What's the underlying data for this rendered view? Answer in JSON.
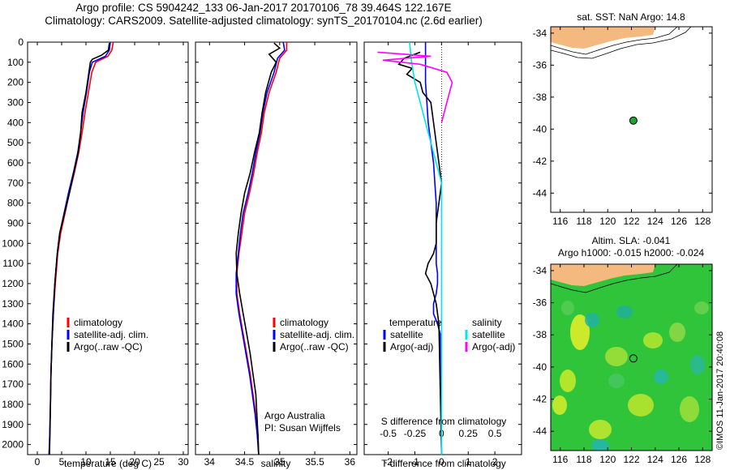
{
  "header": {
    "line1": "Argo profile: CS 5904242_133 06-Jan-2017 20170106_78 39.464S 122.167E",
    "line2": "Climatology: CARS2009. Satellite-adjusted climatology: synTS_20170104.nc (2.6d earlier)"
  },
  "colors": {
    "climatology": "#ff0000",
    "satellite": "#0000ff",
    "argo": "#000000",
    "sal_satellite": "#00e5ee",
    "sal_argo": "#ff00ff",
    "land": "#f4b97f",
    "ocean_base": "#2fc43a",
    "marker": "#1aa832"
  },
  "chart_data": [
    {
      "type": "line",
      "id": "temperature_profile",
      "xlabel": "temperature (deg C)",
      "ylabel": "",
      "xlim": [
        -2,
        31
      ],
      "ylim": [
        2050,
        0
      ],
      "xticks": [
        0,
        5,
        10,
        15,
        20,
        25,
        30
      ],
      "yticks": [
        0,
        100,
        200,
        300,
        400,
        500,
        600,
        700,
        800,
        900,
        1000,
        1100,
        1200,
        1300,
        1400,
        1500,
        1600,
        1700,
        1800,
        1900,
        2000
      ],
      "legend": [
        "climatology",
        "satellite-adj. clim.",
        "Argo(..raw -QC)"
      ],
      "series": [
        {
          "name": "climatology",
          "color": "#ff0000",
          "x": [
            15.6,
            15.3,
            14.5,
            12.0,
            11.2,
            10.5,
            9.8,
            9.2,
            8.5,
            7.6,
            6.6,
            5.7,
            4.8,
            4.2,
            3.7,
            3.3,
            3.0,
            2.8,
            2.7,
            2.6,
            2.5,
            2.4
          ],
          "depth": [
            0,
            40,
            70,
            100,
            150,
            250,
            350,
            450,
            550,
            650,
            750,
            850,
            950,
            1050,
            1200,
            1350,
            1500,
            1650,
            1800,
            1900,
            2000,
            2050
          ]
        },
        {
          "name": "satellite-adj. clim.",
          "color": "#0000ff",
          "x": [
            15.0,
            14.8,
            14.0,
            11.3,
            10.7,
            10.1,
            9.4,
            8.9,
            8.3,
            7.4,
            6.4,
            5.5,
            4.6,
            4.1,
            3.6,
            3.3,
            3.0,
            2.8,
            2.7,
            2.6,
            2.5,
            2.4
          ],
          "depth": [
            0,
            40,
            70,
            100,
            150,
            250,
            350,
            450,
            550,
            650,
            750,
            850,
            950,
            1050,
            1200,
            1350,
            1500,
            1650,
            1800,
            1900,
            2000,
            2050
          ]
        },
        {
          "name": "Argo(..raw -QC)",
          "color": "#000000",
          "x": [
            14.8,
            14.6,
            13.2,
            11.3,
            10.9,
            10.6,
            10.0,
            9.2,
            8.9,
            8.4,
            7.5,
            6.6,
            5.6,
            4.6,
            4.1,
            3.6,
            3.2,
            3.0,
            2.8,
            2.7,
            2.6,
            2.5
          ],
          "depth": [
            5,
            40,
            65,
            85,
            100,
            150,
            250,
            350,
            450,
            550,
            650,
            750,
            850,
            950,
            1050,
            1200,
            1350,
            1500,
            1650,
            1800,
            1950,
            2050
          ]
        }
      ]
    },
    {
      "type": "line",
      "id": "salinity_profile",
      "xlabel": "salinity",
      "xlim": [
        33.8,
        36.1
      ],
      "ylim": [
        2050,
        0
      ],
      "xticks": [
        34,
        34.5,
        35,
        35.5,
        36
      ],
      "legend": [
        "climatology",
        "satellite-adj. clim.",
        "Argo(..raw -QC)"
      ],
      "annotation": [
        "Argo Australia",
        "PI: Susan Wijffels"
      ],
      "series": [
        {
          "name": "climatology",
          "color": "#ff0000",
          "x": [
            35.1,
            35.1,
            35.0,
            34.95,
            34.85,
            34.78,
            34.74,
            34.68,
            34.63,
            34.57,
            34.5,
            34.46,
            34.42,
            34.39,
            34.39,
            34.43,
            34.48,
            34.53,
            34.58,
            34.62,
            34.66,
            34.69,
            34.7
          ],
          "depth": [
            0,
            40,
            80,
            150,
            250,
            350,
            450,
            550,
            650,
            750,
            850,
            950,
            1050,
            1150,
            1250,
            1350,
            1450,
            1550,
            1650,
            1750,
            1850,
            1950,
            2050
          ]
        },
        {
          "name": "satellite-adj. clim.",
          "color": "#0000ff",
          "x": [
            35.05,
            35.07,
            34.97,
            34.92,
            34.82,
            34.76,
            34.72,
            34.66,
            34.61,
            34.55,
            34.48,
            34.44,
            34.41,
            34.38,
            34.38,
            34.42,
            34.47,
            34.52,
            34.57,
            34.61,
            34.65,
            34.68,
            34.7
          ],
          "depth": [
            0,
            40,
            80,
            150,
            250,
            350,
            450,
            550,
            650,
            750,
            850,
            950,
            1050,
            1150,
            1250,
            1350,
            1450,
            1550,
            1650,
            1750,
            1850,
            1950,
            2050
          ]
        },
        {
          "name": "Argo(..raw -QC)",
          "color": "#000000",
          "x": [
            34.92,
            35.0,
            34.85,
            34.95,
            34.88,
            34.8,
            34.75,
            34.71,
            34.64,
            34.58,
            34.5,
            34.45,
            34.41,
            34.38,
            34.39,
            34.43,
            34.48,
            34.53,
            34.58,
            34.62,
            34.66,
            34.69,
            34.7
          ],
          "depth": [
            5,
            30,
            60,
            100,
            150,
            250,
            350,
            450,
            550,
            650,
            750,
            850,
            950,
            1050,
            1150,
            1250,
            1350,
            1450,
            1550,
            1650,
            1750,
            1950,
            2050
          ]
        }
      ]
    },
    {
      "type": "line",
      "id": "difference_profile",
      "xlabel": "T difference from climatology",
      "xlabel_top": "S difference from climatology",
      "xlim_T": [
        -2.9,
        3.0
      ],
      "xticks_T": [
        -2,
        -1,
        0,
        1,
        2
      ],
      "xticks_S": [
        -0.5,
        -0.25,
        0,
        0.25,
        0.5
      ],
      "xtick_labels_S": [
        "-0.5",
        "-0.25",
        "0",
        "0.25",
        "0.5"
      ],
      "ylim": [
        2050,
        0
      ],
      "legend_temperature": {
        "title": "temperature",
        "items": [
          "satellite",
          "Argo(-adj)"
        ]
      },
      "legend_salinity": {
        "title": "salinity",
        "items": [
          "satellite",
          "Argo(-adj)"
        ]
      },
      "series": [
        {
          "name": "temperature satellite",
          "color": "#0000ff",
          "x": [
            -0.6,
            -0.6,
            -0.6,
            -0.55,
            -0.5,
            -0.4,
            -0.3,
            -0.25,
            -0.2,
            -0.2,
            -0.2,
            -0.2,
            -0.15,
            -0.15,
            -0.2,
            -0.3,
            -0.3,
            -0.15,
            -0.05,
            0
          ],
          "depth": [
            0,
            100,
            200,
            300,
            400,
            500,
            600,
            700,
            800,
            900,
            1000,
            1100,
            1150,
            1200,
            1250,
            1300,
            1350,
            1400,
            1450,
            2050
          ]
        },
        {
          "name": "temperature Argo(-adj)",
          "color": "#000000",
          "x": [
            -0.8,
            -1.4,
            -1.6,
            -1.1,
            -1.3,
            -0.8,
            -0.7,
            -0.4,
            -0.3,
            -0.2,
            -0.1,
            0.0,
            -0.1,
            -0.2,
            -0.2,
            -0.3,
            -0.5,
            -0.6,
            -0.4,
            -0.2,
            -0.1,
            0.0
          ],
          "depth": [
            50,
            80,
            110,
            130,
            160,
            200,
            250,
            300,
            400,
            500,
            600,
            700,
            800,
            900,
            1000,
            1050,
            1100,
            1150,
            1200,
            1300,
            1400,
            2050
          ]
        },
        {
          "name": "salinity satellite",
          "color": "#00e5ee",
          "x": [
            -0.3,
            -0.28,
            -0.25,
            -0.2,
            -0.15,
            -0.1,
            -0.05,
            0.0,
            0.0
          ],
          "depth": [
            0,
            100,
            200,
            300,
            400,
            500,
            600,
            700,
            2050
          ]
        },
        {
          "name": "salinity Argo(-adj)",
          "color": "#ff00ff",
          "x": [
            -0.6,
            -0.1,
            -0.55,
            -0.2,
            0.05,
            0.1,
            0.05,
            0.0
          ],
          "depth": [
            50,
            70,
            90,
            110,
            150,
            200,
            300,
            400
          ]
        }
      ]
    },
    {
      "type": "map",
      "id": "sst_map",
      "title": "sat. SST: NaN Argo: 14.8",
      "xlim": [
        115.2,
        128.8
      ],
      "ylim": [
        -45.2,
        -33.6
      ],
      "xticks": [
        116,
        118,
        120,
        122,
        124,
        126,
        128
      ],
      "yticks": [
        -34,
        -36,
        -38,
        -40,
        -42,
        -44
      ],
      "float_position": {
        "lon": 122.167,
        "lat": -39.464
      }
    },
    {
      "type": "heatmap",
      "id": "sla_map",
      "title_line1": "Altim. SLA: -0.041",
      "title_line2": "Argo h1000: -0.015 h2000: -0.024",
      "xlim": [
        115.2,
        128.8
      ],
      "ylim": [
        -45.2,
        -33.6
      ],
      "xticks": [
        116,
        118,
        120,
        122,
        124,
        126,
        128
      ],
      "yticks": [
        -34,
        -36,
        -38,
        -40,
        -42,
        -44
      ],
      "float_position": {
        "lon": 122.167,
        "lat": -39.464
      }
    }
  ],
  "side_label": "©IMOS 11-Jan-2017 20:40:08"
}
